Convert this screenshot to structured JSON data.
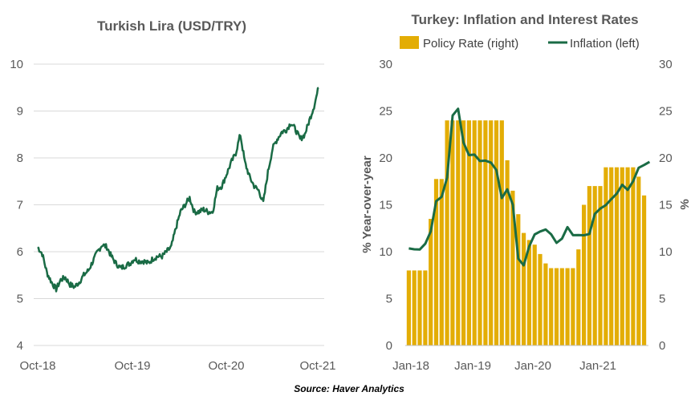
{
  "source_text": "Source: Haver Analytics",
  "chart_data": [
    {
      "type": "line",
      "title": "Turkish Lira (USD/TRY)",
      "xlabel": "",
      "ylabel": "",
      "ylim": [
        4,
        10
      ],
      "yticks": [
        "4",
        "5",
        "6",
        "7",
        "8",
        "9",
        "10"
      ],
      "xticks": [
        "Oct-18",
        "Oct-19",
        "Oct-20",
        "Oct-21"
      ],
      "grid": true,
      "colors": {
        "line": "#1a6b45",
        "grid": "#d9d9d9"
      },
      "series": [
        {
          "values": [
            6.1,
            5.95,
            5.55,
            5.35,
            5.2,
            5.4,
            5.45,
            5.3,
            5.25,
            5.35,
            5.5,
            5.6,
            5.8,
            6.0,
            6.15,
            6.1,
            5.9,
            5.75,
            5.65,
            5.7,
            5.75,
            5.85,
            5.8,
            5.8,
            5.75,
            5.85,
            5.9,
            5.9,
            6.0,
            6.1,
            6.5,
            6.85,
            7.0,
            7.15,
            6.85,
            6.85,
            6.9,
            6.85,
            6.85,
            7.35,
            7.4,
            7.65,
            7.9,
            8.1,
            8.5,
            7.9,
            7.6,
            7.4,
            7.3,
            7.05,
            7.7,
            8.2,
            8.4,
            8.55,
            8.6,
            8.75,
            8.6,
            8.4,
            8.5,
            8.8,
            9.1,
            9.5
          ]
        }
      ]
    },
    {
      "type": "bar",
      "title": "Turkey: Inflation and Interest Rates",
      "xlabel": "",
      "ylabel": "% Year-over-year",
      "y2label": "%",
      "ylim": [
        0,
        30
      ],
      "y2lim": [
        0,
        30
      ],
      "yticks": [
        "0",
        "5",
        "10",
        "15",
        "20",
        "25",
        "30"
      ],
      "y2ticks": [
        "0",
        "5",
        "10",
        "15",
        "20",
        "25",
        "30"
      ],
      "xticks": [
        "Jan-18",
        "Jan-19",
        "Jan-20",
        "Jan-21"
      ],
      "legend_position": "top",
      "grid": false,
      "colors": {
        "bar": "#e3ad05",
        "line": "#1a6b45"
      },
      "series": [
        {
          "name": "Policy Rate (right)",
          "type": "bar",
          "axis": "right",
          "values": [
            8.0,
            8.0,
            8.0,
            8.0,
            13.5,
            17.75,
            17.75,
            24.0,
            24.0,
            24.0,
            24.0,
            24.0,
            24.0,
            24.0,
            24.0,
            24.0,
            24.0,
            24.0,
            19.75,
            16.5,
            14.0,
            12.0,
            11.25,
            10.75,
            9.75,
            8.75,
            8.25,
            8.25,
            8.25,
            8.25,
            8.25,
            10.25,
            15.0,
            17.0,
            17.0,
            17.0,
            19.0,
            19.0,
            19.0,
            19.0,
            19.0,
            19.0,
            18.0,
            16.0
          ]
        },
        {
          "name": "Inflation (left)",
          "type": "line",
          "axis": "left",
          "values": [
            10.35,
            10.26,
            10.23,
            10.85,
            12.15,
            15.39,
            15.85,
            17.9,
            24.52,
            25.24,
            21.62,
            20.3,
            20.35,
            19.67,
            19.71,
            19.5,
            18.71,
            15.72,
            16.65,
            15.01,
            9.26,
            8.55,
            10.56,
            11.84,
            12.15,
            12.37,
            11.86,
            10.94,
            11.39,
            12.62,
            11.76,
            11.77,
            11.75,
            11.89,
            14.03,
            14.6,
            14.97,
            15.61,
            16.19,
            17.14,
            16.59,
            17.53,
            18.95,
            19.25,
            19.58
          ]
        }
      ]
    }
  ]
}
